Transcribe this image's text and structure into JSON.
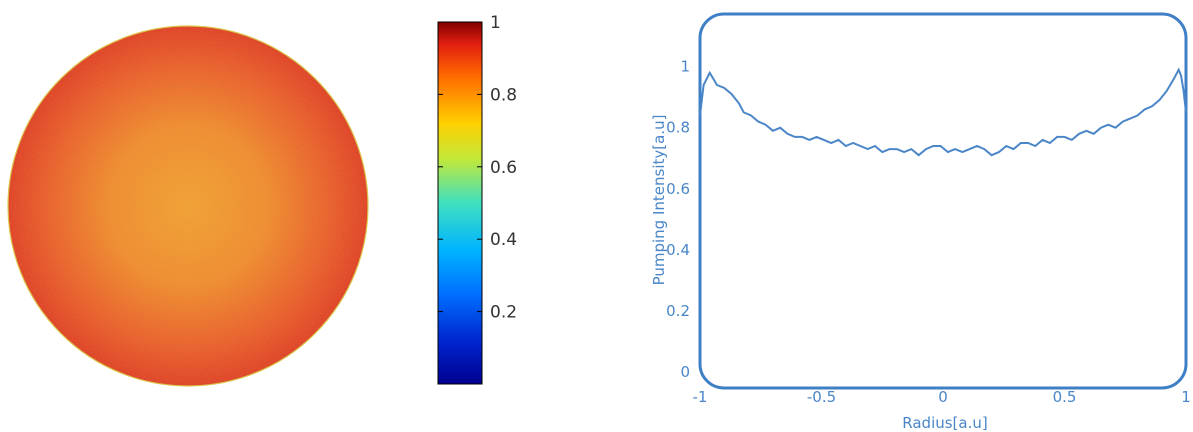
{
  "chart_data": [
    {
      "type": "heatmap",
      "shape": "circle",
      "colormap": "jet",
      "colorbar": {
        "range": [
          0,
          1
        ],
        "ticks": [
          0.2,
          0.4,
          0.6,
          0.8,
          1
        ],
        "tick_labels": [
          "0.2",
          "0.4",
          "0.6",
          "0.8",
          "1"
        ]
      },
      "center_value": 0.72,
      "edge_value": 0.9,
      "title": "",
      "xlabel": "",
      "ylabel": ""
    },
    {
      "type": "line",
      "title": "",
      "xlabel": "Radius[a.u]",
      "ylabel": "Pumping Intensity[a.u]",
      "xlim": [
        -1,
        1
      ],
      "ylim": [
        0,
        1.12
      ],
      "xticks": [
        -1,
        -0.5,
        0,
        0.5,
        1
      ],
      "xtick_labels": [
        "-1",
        "-0.5",
        "0",
        "0.5",
        "1"
      ],
      "yticks": [
        0,
        0.2,
        0.4,
        0.6,
        0.8,
        1
      ],
      "ytick_labels": [
        "0",
        "0.2",
        "0.4",
        "0.6",
        "0.8",
        "1"
      ],
      "grid": false,
      "color": "#4a86c8",
      "series": [
        {
          "x": [
            -1,
            -0.985,
            -0.96,
            -0.945,
            -0.93,
            -0.9,
            -0.87,
            -0.84,
            -0.82,
            -0.79,
            -0.76,
            -0.73,
            -0.7,
            -0.67,
            -0.64,
            -0.61,
            -0.58,
            -0.55,
            -0.52,
            -0.49,
            -0.46,
            -0.43,
            -0.4,
            -0.37,
            -0.34,
            -0.31,
            -0.28,
            -0.25,
            -0.22,
            -0.19,
            -0.16,
            -0.13,
            -0.1,
            -0.07,
            -0.04,
            -0.01,
            0.02,
            0.05,
            0.08,
            0.11,
            0.14,
            0.17,
            0.2,
            0.23,
            0.26,
            0.29,
            0.32,
            0.35,
            0.38,
            0.41,
            0.44,
            0.47,
            0.5,
            0.53,
            0.56,
            0.59,
            0.62,
            0.65,
            0.68,
            0.71,
            0.74,
            0.77,
            0.8,
            0.83,
            0.86,
            0.89,
            0.92,
            0.95,
            0.97,
            0.98,
            0.99,
            1
          ],
          "y": [
            0.84,
            0.94,
            0.98,
            0.96,
            0.94,
            0.93,
            0.91,
            0.88,
            0.85,
            0.84,
            0.82,
            0.81,
            0.79,
            0.8,
            0.78,
            0.77,
            0.77,
            0.76,
            0.77,
            0.76,
            0.75,
            0.76,
            0.74,
            0.75,
            0.74,
            0.73,
            0.74,
            0.72,
            0.73,
            0.73,
            0.72,
            0.73,
            0.71,
            0.73,
            0.74,
            0.74,
            0.72,
            0.73,
            0.72,
            0.73,
            0.74,
            0.73,
            0.71,
            0.72,
            0.74,
            0.73,
            0.75,
            0.75,
            0.74,
            0.76,
            0.75,
            0.77,
            0.77,
            0.76,
            0.78,
            0.79,
            0.78,
            0.8,
            0.81,
            0.8,
            0.82,
            0.83,
            0.84,
            0.86,
            0.87,
            0.89,
            0.92,
            0.96,
            0.99,
            0.97,
            0.92,
            0.85
          ]
        }
      ]
    }
  ]
}
